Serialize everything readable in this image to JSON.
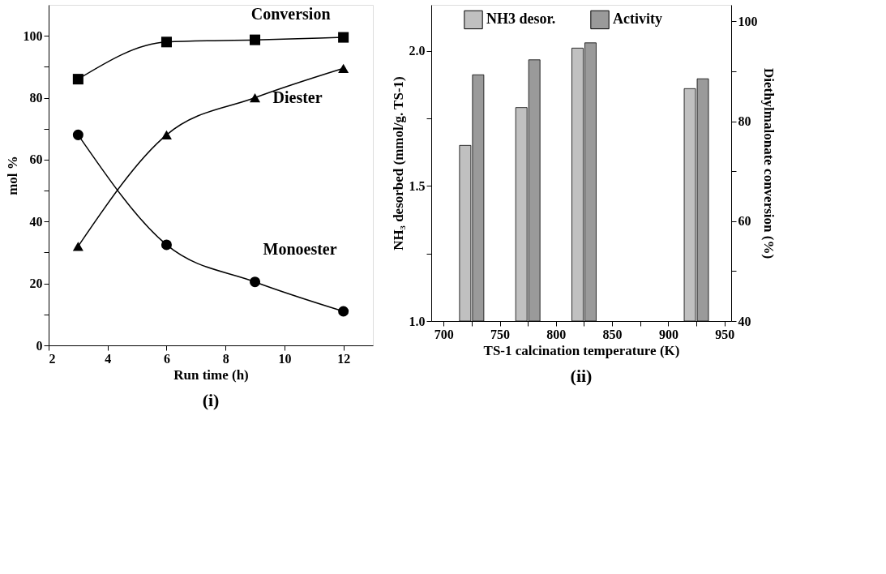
{
  "chart_data": [
    {
      "type": "line",
      "title": "(i)",
      "xlabel": "Run time (h)",
      "ylabel": "mol %",
      "x": [
        3,
        6,
        9,
        12
      ],
      "series": [
        {
          "name": "Conversion",
          "color": "#000000",
          "marker": "square",
          "values": [
            86,
            98,
            98.7,
            99.5
          ]
        },
        {
          "name": "Diester",
          "color": "#000000",
          "marker": "triangle",
          "values": [
            32,
            68,
            80,
            89.5
          ]
        },
        {
          "name": "Monoester",
          "color": "#000000",
          "marker": "circle",
          "values": [
            68,
            32.5,
            20.5,
            11
          ]
        }
      ],
      "xlim": [
        2,
        13
      ],
      "xticks": [
        2,
        4,
        6,
        8,
        10,
        12
      ],
      "ylim": [
        0,
        110
      ],
      "yticks": [
        0,
        {
          "value": 10,
          "label": null
        },
        20,
        {
          "value": 30,
          "label": null
        },
        40,
        {
          "value": 50,
          "label": null
        },
        60,
        {
          "value": 70,
          "label": null
        },
        80,
        {
          "value": 90,
          "label": null
        },
        100
      ],
      "line_style": "solid"
    },
    {
      "type": "bar",
      "title": "(ii)",
      "xlabel": "TS-1 calcination temperature (K)",
      "ylabel": "NH₃ desorbed (mmol/g. TS-1)",
      "y2label": "Diethylmalonate conversion (%)",
      "x": [
        725,
        775,
        825,
        925
      ],
      "series": [
        {
          "name": "NH3 desor.",
          "color": "#c0c0c0",
          "values": [
            1.65,
            1.79,
            2.01,
            1.86
          ]
        },
        {
          "name": "Activity",
          "color": "#9a9a9a",
          "axis": "y2",
          "values": [
            89.3,
            92.3,
            95.7,
            88.5
          ]
        }
      ],
      "xlim": [
        689,
        956
      ],
      "xticks": [
        700,
        {
          "value": 725,
          "label": null
        },
        750,
        {
          "value": 775,
          "label": null
        },
        800,
        {
          "value": 825,
          "label": null
        },
        850,
        {
          "value": 875,
          "label": null
        },
        900,
        {
          "value": 925,
          "label": null
        },
        950
      ],
      "ylim": [
        1.0,
        2.17
      ],
      "yticks": [
        {
          "value": 1,
          "label": "1.0"
        },
        {
          "value": 1.25,
          "label": null
        },
        1.5,
        {
          "value": 1.75,
          "label": null
        },
        {
          "value": 2,
          "label": "2.0"
        }
      ],
      "y2lim": [
        40,
        103.3
      ],
      "y2ticks": [
        40,
        {
          "value": 50,
          "label": null
        },
        60,
        {
          "value": 70,
          "label": null
        },
        80,
        {
          "value": 90,
          "label": null
        },
        100
      ],
      "legend": "top"
    }
  ]
}
